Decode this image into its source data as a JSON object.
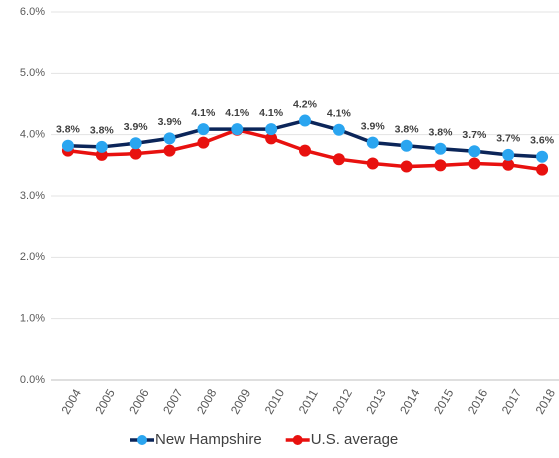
{
  "chart_data": {
    "type": "line",
    "categories": [
      "2004",
      "2005",
      "2006",
      "2007",
      "2008",
      "2009",
      "2010",
      "2011",
      "2012",
      "2013",
      "2014",
      "2015",
      "2016",
      "2017",
      "2018"
    ],
    "series": [
      {
        "name": "New Hampshire",
        "color": "#0b2559",
        "marker_color": "#2aa5f0",
        "values": [
          3.82,
          3.8,
          3.86,
          3.94,
          4.09,
          4.09,
          4.09,
          4.23,
          4.08,
          3.87,
          3.82,
          3.77,
          3.73,
          3.67,
          3.64
        ],
        "value_labels": [
          "3.8%",
          "3.8%",
          "3.9%",
          "3.9%",
          "4.1%",
          "4.1%",
          "4.1%",
          "4.2%",
          "4.1%",
          "3.9%",
          "3.8%",
          "3.8%",
          "3.7%",
          "3.7%",
          "3.6%"
        ]
      },
      {
        "name": "U.S. average",
        "color": "#e8110f",
        "marker_color": "#e8110f",
        "values": [
          3.74,
          3.67,
          3.69,
          3.74,
          3.87,
          4.08,
          3.94,
          3.74,
          3.6,
          3.53,
          3.48,
          3.5,
          3.53,
          3.51,
          3.43
        ]
      }
    ],
    "ylim": [
      0,
      6
    ],
    "yticks": [
      {
        "value": 0,
        "label": "0.0%"
      },
      {
        "value": 1,
        "label": "1.0%"
      },
      {
        "value": 2,
        "label": "2.0%"
      },
      {
        "value": 3,
        "label": "3.0%"
      },
      {
        "value": 4,
        "label": "4.0%"
      },
      {
        "value": 5,
        "label": "5.0%"
      },
      {
        "value": 6,
        "label": "6.0%"
      }
    ],
    "grid": true
  }
}
